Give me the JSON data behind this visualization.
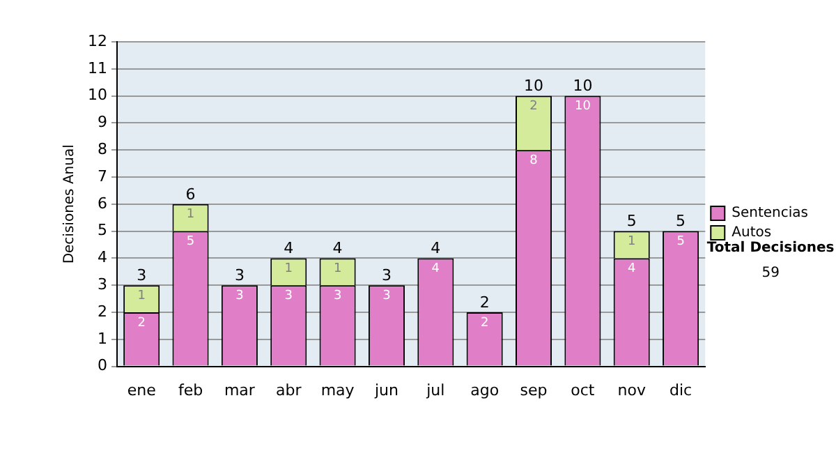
{
  "chart_data": {
    "type": "bar",
    "stacked": true,
    "ylabel": "Decisiones Anual",
    "categories": [
      "ene",
      "feb",
      "mar",
      "abr",
      "may",
      "jun",
      "jul",
      "ago",
      "sep",
      "oct",
      "nov",
      "dic"
    ],
    "series": [
      {
        "name": "Sentencias",
        "color": "#e07fc8",
        "values": [
          2,
          5,
          3,
          3,
          3,
          3,
          4,
          2,
          8,
          10,
          4,
          5
        ]
      },
      {
        "name": "Autos",
        "color": "#d4eb9c",
        "values": [
          1,
          1,
          null,
          1,
          1,
          null,
          null,
          null,
          2,
          null,
          1,
          null
        ]
      }
    ],
    "totals": [
      "3",
      "6",
      "3",
      "4",
      "4",
      "3",
      "4",
      "2",
      "10",
      "10",
      "5",
      "5"
    ],
    "ylim": [
      0,
      12
    ],
    "yticks": [
      0,
      1,
      2,
      3,
      4,
      5,
      6,
      7,
      8,
      9,
      10,
      11,
      12
    ],
    "grid": "y",
    "legend": "right",
    "data_labels": true,
    "annotations": [
      "Total Decisiones",
      "59"
    ]
  }
}
